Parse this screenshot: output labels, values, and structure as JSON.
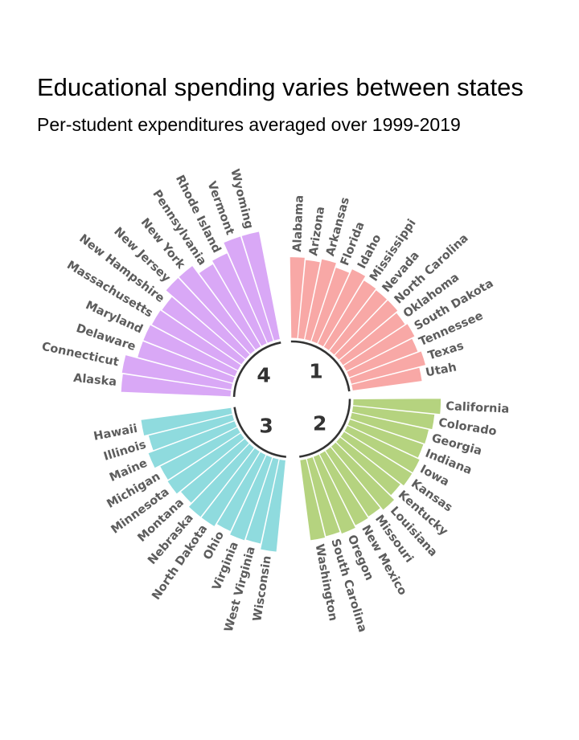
{
  "chart_data": {
    "type": "bar",
    "coordinate_system": "polar",
    "title": "Educational spending varies between states",
    "subtitle": "Per-student expenditures averaged over 1999-2019",
    "groups": [
      {
        "name": "1",
        "color": "#f8a8a6",
        "categories": [
          "Alabama",
          "Arizona",
          "Arkansas",
          "Florida",
          "Idaho",
          "Mississippi",
          "Nevada",
          "North Carolina",
          "Oklahoma",
          "South Dakota",
          "Tennessee",
          "Texas",
          "Utah"
        ],
        "values": [
          74,
          72,
          75,
          71,
          75,
          71,
          70,
          70,
          68,
          70,
          67,
          70,
          64
        ]
      },
      {
        "name": "2",
        "color": "#b5d37f",
        "categories": [
          "California",
          "Colorado",
          "Georgia",
          "Indiana",
          "Iowa",
          "Kansas",
          "Kentucky",
          "Louisiana",
          "Missouri",
          "New Mexico",
          "Oregon",
          "South Carolina",
          "Washington"
        ],
        "values": [
          80,
          75,
          72,
          71,
          73,
          73,
          70,
          75,
          72,
          73,
          75,
          73,
          74
        ]
      },
      {
        "name": "3",
        "color": "#8fdbde",
        "categories": [
          "Wisconsin",
          "West Virginia",
          "Virginia",
          "Ohio",
          "North Dakota",
          "Nebraska",
          "Montana",
          "Minnesota",
          "Michigan",
          "Maine",
          "Illinois",
          "Hawaii"
        ],
        "values": [
          84,
          79,
          80,
          77,
          80,
          80,
          76,
          80,
          79,
          84,
          79,
          83
        ]
      },
      {
        "name": "4",
        "color": "#d9a8f6",
        "categories": [
          "Alaska",
          "Connecticut",
          "Delaware",
          "Maryland",
          "Massachusetts",
          "New Hampshire",
          "New Jersey",
          "New York",
          "Pennsylvania",
          "Rhode Island",
          "Vermont",
          "Wyoming"
        ],
        "values": [
          100,
          101,
          90,
          90,
          89,
          88,
          96,
          96,
          87,
          90,
          100,
          100
        ]
      }
    ]
  }
}
